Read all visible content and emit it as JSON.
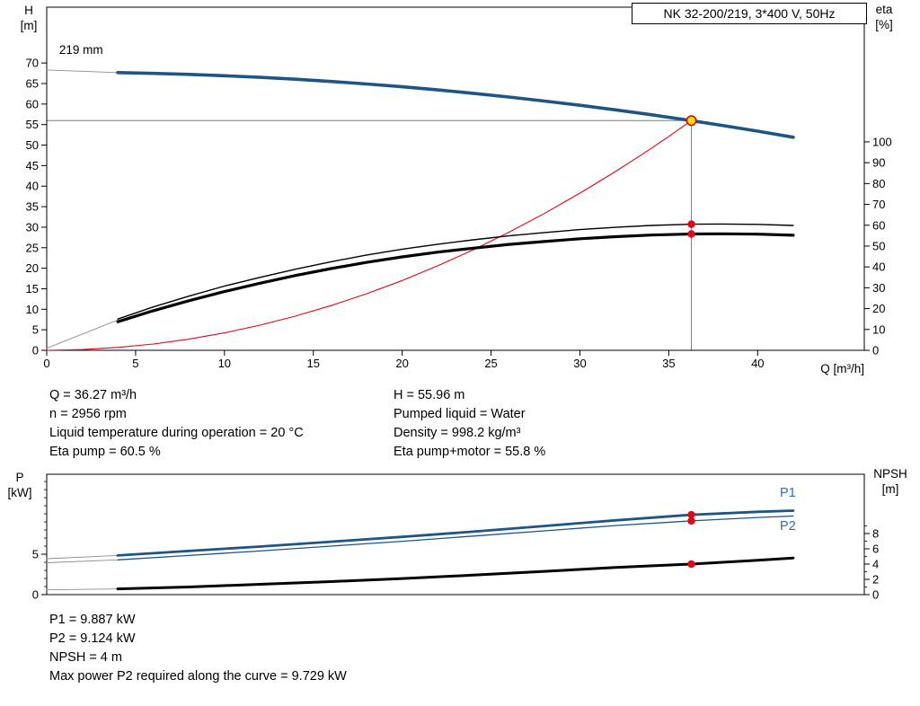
{
  "title_box": {
    "text": "NK 32-200/219, 3*400 V, 50Hz"
  },
  "colors": {
    "curve_blue": "#1d5586",
    "curve_black": "#000000",
    "curve_red": "#e30613",
    "label_blue": "#2f6eb5",
    "dot": "#e30613",
    "duty_fill": "#ffdd00",
    "duty_stroke": "#e30613",
    "ref_line": "#7f7f7f",
    "extension_gray": "#8c8c8c"
  },
  "info_top": {
    "col1": [
      "Q = 36.27 m³/h",
      "n = 2956 rpm",
      "Liquid temperature during operation = 20 °C",
      "Eta pump = 60.5 %"
    ],
    "col2": [
      "H = 55.96 m",
      "Pumped liquid = Water",
      "Density = 998.2 kg/m³",
      "Eta pump+motor = 55.8 %"
    ]
  },
  "info_bottom": [
    "P1 = 9.887 kW",
    "P2 = 9.124 kW",
    "NPSH = 4 m",
    "Max power P2 required along the curve = 9.729 kW"
  ],
  "chart_data": [
    {
      "type": "line",
      "name": "qh-eta-chart",
      "x_axis": {
        "label": "Q [m³/h]",
        "min": 0,
        "max": 46,
        "major_ticks": [
          0,
          5,
          10,
          15,
          20,
          25,
          30,
          35,
          40
        ]
      },
      "y_left": {
        "title_lines": [
          "H",
          "[m]"
        ],
        "min": 0,
        "max": 83.6,
        "major_ticks": [
          0,
          5,
          10,
          15,
          20,
          25,
          30,
          35,
          40,
          45,
          50,
          55,
          60,
          65,
          70
        ]
      },
      "y_right": {
        "title_lines": [
          "eta",
          "[%]"
        ],
        "min": 0,
        "max": 164.6,
        "major_ticks": [
          0,
          10,
          20,
          30,
          40,
          50,
          60,
          70,
          80,
          90,
          100
        ]
      },
      "annotations": [
        {
          "text": "219 mm",
          "q": 0.7,
          "value": 72.2,
          "axis": "left"
        }
      ],
      "duty_point": {
        "q": 36.27,
        "h": 55.96,
        "eta_pump": 60.5,
        "eta_pump_motor": 55.8
      },
      "ref_lines": [
        {
          "orient": "h",
          "axis": "left",
          "value": 55.96,
          "from": 0,
          "to": 36.27
        },
        {
          "orient": "v",
          "axis": "left",
          "q": 36.27,
          "from": 0,
          "to": 55.96
        }
      ],
      "series": [
        {
          "name": "head-curve-extension",
          "axis": "left",
          "color": "#8c8c8c",
          "width": 0.9,
          "x": [
            0,
            4
          ],
          "y": [
            68.3,
            67.66
          ]
        },
        {
          "name": "eta-curve-extension",
          "axis": "right",
          "color": "#8c8c8c",
          "width": 0.9,
          "x": [
            0,
            4
          ],
          "y": [
            1.0,
            14.5
          ]
        },
        {
          "name": "system-curve",
          "axis": "left",
          "color": "#e30613",
          "width": 1.1,
          "x": [
            0,
            2,
            4,
            6,
            8,
            10,
            12,
            14,
            16,
            18,
            20,
            22,
            24,
            26,
            28,
            30,
            32,
            33,
            34,
            35,
            36.27
          ],
          "y": [
            0,
            0.17,
            0.7,
            1.53,
            2.72,
            4.25,
            6.13,
            8.34,
            10.9,
            13.78,
            17.0,
            20.59,
            24.5,
            28.76,
            33.34,
            38.29,
            43.56,
            46.33,
            49.18,
            52.11,
            55.96
          ]
        },
        {
          "name": "head-curve",
          "axis": "left",
          "color": "#1d5586",
          "width": 3.6,
          "x": [
            4,
            6,
            8,
            10,
            12,
            14,
            16,
            18,
            20,
            22,
            24,
            26,
            28,
            30,
            32,
            34,
            36.27,
            38,
            40,
            42
          ],
          "y": [
            67.66,
            67.48,
            67.22,
            66.9,
            66.5,
            66.04,
            65.5,
            64.88,
            64.2,
            63.44,
            62.62,
            61.72,
            60.74,
            59.7,
            58.58,
            57.4,
            55.96,
            54.8,
            53.4,
            51.9
          ]
        },
        {
          "name": "eta-pump-curve",
          "axis": "right",
          "color": "#000000",
          "width": 1.4,
          "x": [
            4,
            6,
            8,
            10,
            12,
            14,
            16,
            18,
            20,
            22,
            24,
            26,
            28,
            30,
            32,
            34,
            36.27,
            38,
            40,
            42
          ],
          "y": [
            15,
            20.8,
            26,
            30.8,
            35,
            38.9,
            42.5,
            45.7,
            48.5,
            50.9,
            53,
            54.9,
            56.5,
            57.9,
            59,
            59.9,
            60.5,
            60.6,
            60.4,
            59.9
          ]
        },
        {
          "name": "eta-pump-motor-curve",
          "axis": "right",
          "color": "#000000",
          "width": 3.2,
          "x": [
            4,
            6,
            8,
            10,
            12,
            14,
            16,
            18,
            20,
            22,
            24,
            26,
            28,
            30,
            32,
            34,
            36.27,
            38,
            40,
            42
          ],
          "y": [
            13.7,
            19,
            23.8,
            28.2,
            32.2,
            35.9,
            39.2,
            42.2,
            44.8,
            47.1,
            49,
            50.8,
            52.2,
            53.5,
            54.5,
            55.3,
            55.8,
            55.9,
            55.7,
            55.2
          ]
        }
      ],
      "markers": [
        {
          "kind": "dot",
          "axis": "right",
          "q": 36.27,
          "value": 60.5
        },
        {
          "kind": "dot",
          "axis": "right",
          "q": 36.27,
          "value": 55.8
        },
        {
          "kind": "duty",
          "axis": "left",
          "q": 36.27,
          "value": 55.96
        }
      ]
    },
    {
      "type": "line",
      "name": "power-npsh-chart",
      "x_axis": {
        "label": "",
        "min": 0,
        "max": 46,
        "major_ticks": []
      },
      "y_left": {
        "title_lines": [
          "P",
          "[kW]"
        ],
        "min": 0,
        "max": 14.9,
        "major_ticks": [
          0,
          5
        ],
        "minor_ticks": [
          1,
          2,
          3,
          4,
          6,
          7,
          8,
          9,
          10,
          11,
          12,
          13,
          14
        ]
      },
      "y_right": {
        "title_lines": [
          "NPSH",
          "[m]"
        ],
        "min": 0,
        "max": 15.76,
        "major_ticks": [
          0,
          2,
          4,
          6,
          8
        ],
        "minor_ticks": [
          1,
          3,
          5,
          7,
          9
        ]
      },
      "duty_point": {
        "q": 36.27,
        "p1": 9.887,
        "p2": 9.124,
        "npsh": 4
      },
      "series": [
        {
          "name": "p1-curve-extension",
          "axis": "left",
          "color": "#8c8c8c",
          "width": 0.9,
          "x": [
            0,
            4
          ],
          "y": [
            4.45,
            4.85
          ]
        },
        {
          "name": "p2-curve-extension",
          "axis": "left",
          "color": "#8c8c8c",
          "width": 0.9,
          "x": [
            0,
            4
          ],
          "y": [
            3.95,
            4.3
          ]
        },
        {
          "name": "npsh-curve-extension",
          "axis": "right",
          "color": "#8c8c8c",
          "width": 0.9,
          "x": [
            0,
            4
          ],
          "y": [
            0.62,
            0.75
          ]
        },
        {
          "name": "p1-curve",
          "axis": "left",
          "color": "#1d5586",
          "width": 2.8,
          "x": [
            4,
            8,
            12,
            16,
            20,
            24,
            28,
            32,
            36.27,
            40,
            42
          ],
          "y": [
            4.85,
            5.4,
            5.95,
            6.55,
            7.15,
            7.8,
            8.5,
            9.2,
            9.887,
            10.25,
            10.4
          ],
          "end_label": {
            "text": "P1",
            "q": 41.7,
            "value": 12.7,
            "color": "#2f6eb5"
          }
        },
        {
          "name": "p2-curve",
          "axis": "left",
          "color": "#1d5586",
          "width": 1.3,
          "x": [
            4,
            8,
            12,
            16,
            20,
            24,
            28,
            32,
            36.27,
            40,
            42
          ],
          "y": [
            4.3,
            4.85,
            5.4,
            6.0,
            6.6,
            7.25,
            7.9,
            8.55,
            9.124,
            9.55,
            9.729
          ],
          "end_label": {
            "text": "P2",
            "q": 41.7,
            "value": 8.55,
            "color": "#2f6eb5"
          }
        },
        {
          "name": "npsh-curve",
          "axis": "right",
          "color": "#000000",
          "width": 3.0,
          "x": [
            4,
            8,
            12,
            16,
            20,
            24,
            28,
            32,
            36.27,
            40,
            42
          ],
          "y": [
            0.75,
            1.0,
            1.35,
            1.7,
            2.1,
            2.55,
            3.05,
            3.55,
            4.0,
            4.5,
            4.8
          ]
        }
      ],
      "markers": [
        {
          "kind": "dot",
          "axis": "left",
          "q": 36.27,
          "value": 9.887
        },
        {
          "kind": "dot",
          "axis": "left",
          "q": 36.27,
          "value": 9.124
        },
        {
          "kind": "dot",
          "axis": "right",
          "q": 36.27,
          "value": 4.0
        }
      ]
    }
  ]
}
